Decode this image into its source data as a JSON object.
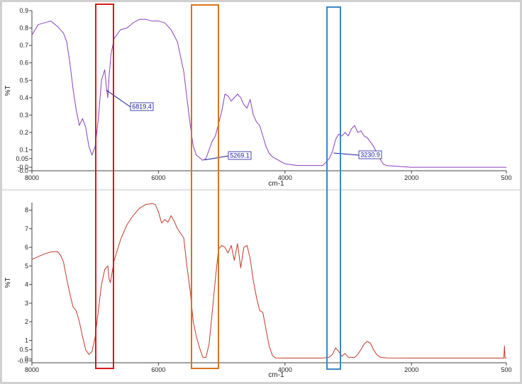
{
  "chart_data": [
    {
      "type": "line",
      "title": "",
      "xlabel": "cm-1",
      "ylabel": "%T",
      "xlim": [
        8000,
        500
      ],
      "ylim": [
        -0.02,
        0.9
      ],
      "x_ticks": [
        8000,
        6000,
        4000,
        2000,
        500
      ],
      "y_ticks": [
        {
          "v": 0.9,
          "label": "0.9"
        },
        {
          "v": 0.8,
          "label": "0.8"
        },
        {
          "v": 0.7,
          "label": "0.7"
        },
        {
          "v": 0.6,
          "label": "0.6"
        },
        {
          "v": 0.5,
          "label": "0.5"
        },
        {
          "v": 0.4,
          "label": "0.4"
        },
        {
          "v": 0.3,
          "label": "0.3"
        },
        {
          "v": 0.2,
          "label": "0.2"
        },
        {
          "v": 0.1,
          "label": "0.1"
        },
        {
          "v": 0.05,
          "label": "0.05"
        },
        {
          "v": 0.0,
          "label": "-0.0"
        },
        {
          "v": -0.02,
          "label": "-0.0"
        }
      ],
      "series": [
        {
          "color": "#8a3fbf",
          "points": [
            [
              8000,
              0.76
            ],
            [
              7900,
              0.82
            ],
            [
              7800,
              0.83
            ],
            [
              7700,
              0.84
            ],
            [
              7600,
              0.81
            ],
            [
              7500,
              0.77
            ],
            [
              7450,
              0.72
            ],
            [
              7400,
              0.6
            ],
            [
              7350,
              0.45
            ],
            [
              7300,
              0.33
            ],
            [
              7250,
              0.24
            ],
            [
              7200,
              0.28
            ],
            [
              7150,
              0.23
            ],
            [
              7100,
              0.12
            ],
            [
              7050,
              0.07
            ],
            [
              7000,
              0.12
            ],
            [
              6950,
              0.28
            ],
            [
              6900,
              0.5
            ],
            [
              6850,
              0.56
            ],
            [
              6820,
              0.45
            ],
            [
              6800,
              0.4
            ],
            [
              6780,
              0.52
            ],
            [
              6750,
              0.65
            ],
            [
              6700,
              0.74
            ],
            [
              6600,
              0.79
            ],
            [
              6500,
              0.8
            ],
            [
              6400,
              0.83
            ],
            [
              6300,
              0.85
            ],
            [
              6200,
              0.85
            ],
            [
              6100,
              0.84
            ],
            [
              6000,
              0.84
            ],
            [
              5900,
              0.83
            ],
            [
              5800,
              0.79
            ],
            [
              5700,
              0.72
            ],
            [
              5600,
              0.55
            ],
            [
              5550,
              0.4
            ],
            [
              5500,
              0.25
            ],
            [
              5450,
              0.12
            ],
            [
              5400,
              0.07
            ],
            [
              5300,
              0.04
            ],
            [
              5250,
              0.05
            ],
            [
              5200,
              0.1
            ],
            [
              5150,
              0.15
            ],
            [
              5100,
              0.18
            ],
            [
              5050,
              0.25
            ],
            [
              5000,
              0.32
            ],
            [
              4950,
              0.42
            ],
            [
              4900,
              0.41
            ],
            [
              4850,
              0.38
            ],
            [
              4800,
              0.4
            ],
            [
              4750,
              0.42
            ],
            [
              4700,
              0.4
            ],
            [
              4650,
              0.36
            ],
            [
              4600,
              0.34
            ],
            [
              4550,
              0.39
            ],
            [
              4500,
              0.3
            ],
            [
              4450,
              0.26
            ],
            [
              4400,
              0.24
            ],
            [
              4350,
              0.18
            ],
            [
              4300,
              0.12
            ],
            [
              4250,
              0.08
            ],
            [
              4200,
              0.06
            ],
            [
              4100,
              0.04
            ],
            [
              4000,
              0.02
            ],
            [
              3800,
              0.01
            ],
            [
              3600,
              0.01
            ],
            [
              3400,
              0.01
            ],
            [
              3300,
              0.05
            ],
            [
              3250,
              0.09
            ],
            [
              3200,
              0.16
            ],
            [
              3150,
              0.19
            ],
            [
              3100,
              0.18
            ],
            [
              3050,
              0.2
            ],
            [
              3000,
              0.18
            ],
            [
              2950,
              0.22
            ],
            [
              2900,
              0.24
            ],
            [
              2850,
              0.2
            ],
            [
              2800,
              0.21
            ],
            [
              2750,
              0.18
            ],
            [
              2700,
              0.17
            ],
            [
              2600,
              0.12
            ],
            [
              2500,
              0.05
            ],
            [
              2450,
              0.02
            ],
            [
              2400,
              0.01
            ],
            [
              2000,
              0.0
            ],
            [
              1500,
              0.0
            ],
            [
              1000,
              0.0
            ],
            [
              500,
              0.0
            ]
          ]
        }
      ],
      "annotations": [
        {
          "label": "6819.4",
          "x": 6819.4
        },
        {
          "label": "5269.1",
          "x": 5269.1
        },
        {
          "label": "3230.9",
          "x": 3230.9
        }
      ]
    },
    {
      "type": "line",
      "title": "",
      "xlabel": "cm-1",
      "ylabel": "%T",
      "xlim": [
        8000,
        500
      ],
      "ylim": [
        -0.2,
        8.4
      ],
      "x_ticks": [
        8000,
        6000,
        4000,
        2000,
        500
      ],
      "y_ticks": [
        {
          "v": 8,
          "label": "8"
        },
        {
          "v": 7,
          "label": "7"
        },
        {
          "v": 6,
          "label": "6"
        },
        {
          "v": 5,
          "label": "5"
        },
        {
          "v": 4,
          "label": "4"
        },
        {
          "v": 3,
          "label": "3"
        },
        {
          "v": 2,
          "label": "2"
        },
        {
          "v": 1,
          "label": "1"
        },
        {
          "v": 0.5,
          "label": "0.5"
        },
        {
          "v": 0,
          "label": "0"
        },
        {
          "v": -0.1,
          "label": "-0.0"
        }
      ],
      "series": [
        {
          "color": "#c0392b",
          "points": [
            [
              8000,
              5.35
            ],
            [
              7900,
              5.5
            ],
            [
              7800,
              5.65
            ],
            [
              7700,
              5.75
            ],
            [
              7600,
              5.78
            ],
            [
              7550,
              5.6
            ],
            [
              7500,
              5.2
            ],
            [
              7450,
              4.3
            ],
            [
              7400,
              3.5
            ],
            [
              7350,
              2.8
            ],
            [
              7300,
              2.6
            ],
            [
              7250,
              2.0
            ],
            [
              7200,
              1.2
            ],
            [
              7150,
              0.5
            ],
            [
              7100,
              0.25
            ],
            [
              7050,
              0.4
            ],
            [
              7000,
              1.2
            ],
            [
              6950,
              2.6
            ],
            [
              6900,
              4.0
            ],
            [
              6850,
              4.8
            ],
            [
              6800,
              5.0
            ],
            [
              6780,
              4.3
            ],
            [
              6760,
              4.1
            ],
            [
              6700,
              5.3
            ],
            [
              6600,
              6.4
            ],
            [
              6500,
              7.2
            ],
            [
              6400,
              7.7
            ],
            [
              6300,
              8.1
            ],
            [
              6200,
              8.3
            ],
            [
              6100,
              8.35
            ],
            [
              6050,
              8.3
            ],
            [
              6000,
              7.9
            ],
            [
              5950,
              7.3
            ],
            [
              5900,
              7.5
            ],
            [
              5850,
              7.35
            ],
            [
              5800,
              7.7
            ],
            [
              5750,
              7.4
            ],
            [
              5700,
              7.0
            ],
            [
              5600,
              6.5
            ],
            [
              5550,
              5.0
            ],
            [
              5500,
              3.7
            ],
            [
              5450,
              2.0
            ],
            [
              5400,
              1.2
            ],
            [
              5350,
              0.6
            ],
            [
              5300,
              0.1
            ],
            [
              5250,
              0.08
            ],
            [
              5200,
              0.8
            ],
            [
              5150,
              2.5
            ],
            [
              5100,
              4.3
            ],
            [
              5050,
              5.9
            ],
            [
              5000,
              6.1
            ],
            [
              4950,
              6.0
            ],
            [
              4900,
              5.7
            ],
            [
              4850,
              6.1
            ],
            [
              4800,
              5.3
            ],
            [
              4750,
              6.2
            ],
            [
              4700,
              4.9
            ],
            [
              4650,
              6.0
            ],
            [
              4600,
              6.1
            ],
            [
              4550,
              5.4
            ],
            [
              4500,
              4.2
            ],
            [
              4450,
              3.3
            ],
            [
              4400,
              2.6
            ],
            [
              4350,
              2.5
            ],
            [
              4300,
              1.6
            ],
            [
              4250,
              0.7
            ],
            [
              4200,
              0.2
            ],
            [
              4150,
              0.06
            ],
            [
              4000,
              0.05
            ],
            [
              3800,
              0.05
            ],
            [
              3600,
              0.05
            ],
            [
              3400,
              0.05
            ],
            [
              3300,
              0.1
            ],
            [
              3250,
              0.25
            ],
            [
              3200,
              0.6
            ],
            [
              3150,
              0.4
            ],
            [
              3100,
              0.15
            ],
            [
              3050,
              0.3
            ],
            [
              3000,
              0.1
            ],
            [
              2900,
              0.08
            ],
            [
              2850,
              0.25
            ],
            [
              2800,
              0.5
            ],
            [
              2750,
              0.8
            ],
            [
              2700,
              0.95
            ],
            [
              2650,
              0.85
            ],
            [
              2600,
              0.5
            ],
            [
              2550,
              0.25
            ],
            [
              2500,
              0.1
            ],
            [
              2400,
              0.06
            ],
            [
              2000,
              0.05
            ],
            [
              1500,
              0.05
            ],
            [
              1000,
              0.05
            ],
            [
              540,
              0.05
            ],
            [
              530,
              0.7
            ],
            [
              520,
              0.05
            ],
            [
              500,
              0.05
            ]
          ]
        }
      ]
    }
  ]
}
